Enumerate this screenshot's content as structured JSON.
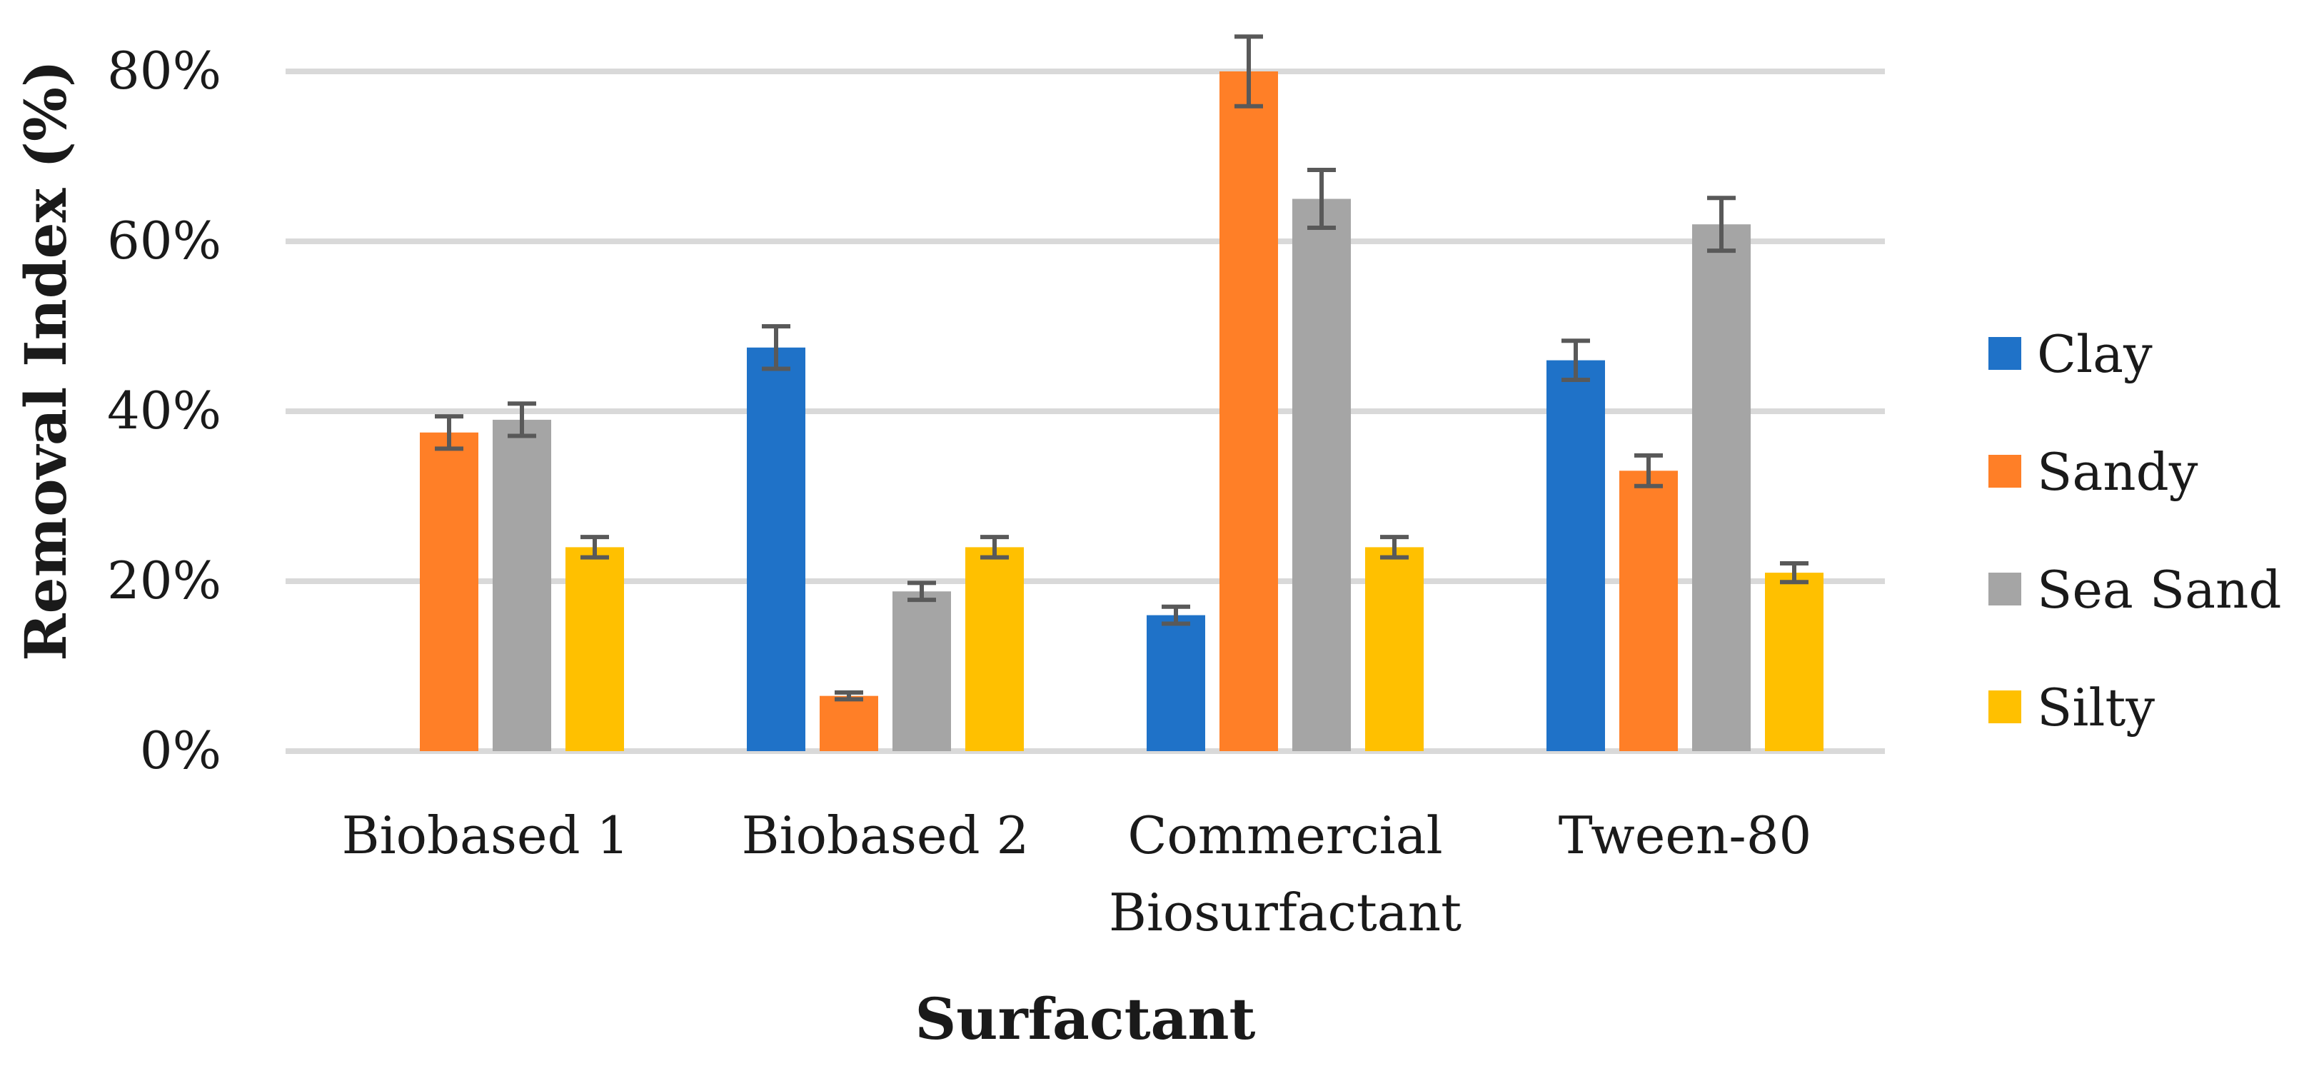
{
  "chart_data": {
    "type": "bar",
    "title": "",
    "xlabel": "Surfactant",
    "ylabel": "Removal Index (%)",
    "ylim": [
      0,
      80
    ],
    "yticks": [
      0,
      20,
      40,
      60,
      80
    ],
    "ytick_labels": [
      "0%",
      "20%",
      "40%",
      "60%",
      "80%"
    ],
    "grid": true,
    "legend_position": "right",
    "categories": [
      [
        "Biobased 1"
      ],
      [
        "Biobased 2"
      ],
      [
        "Commercial",
        "Biosurfactant"
      ],
      [
        "Tween-80"
      ]
    ],
    "series": [
      {
        "name": "Clay",
        "color": "#1F72C8",
        "values": [
          0,
          47.5,
          16,
          46
        ],
        "errors": [
          0,
          2.5,
          1,
          2.3
        ]
      },
      {
        "name": "Sandy",
        "color": "#FF7F27",
        "values": [
          37.5,
          6.5,
          80,
          33
        ],
        "errors": [
          1.9,
          0.4,
          4.1,
          1.8
        ]
      },
      {
        "name": "Sea Sand",
        "color": "#A5A5A5",
        "values": [
          39,
          18.8,
          65,
          62
        ],
        "errors": [
          1.9,
          1,
          3.4,
          3.1
        ]
      },
      {
        "name": "Silty",
        "color": "#FFC000",
        "values": [
          24,
          24,
          24,
          21
        ],
        "errors": [
          1.2,
          1.2,
          1.2,
          1.1
        ]
      }
    ]
  }
}
